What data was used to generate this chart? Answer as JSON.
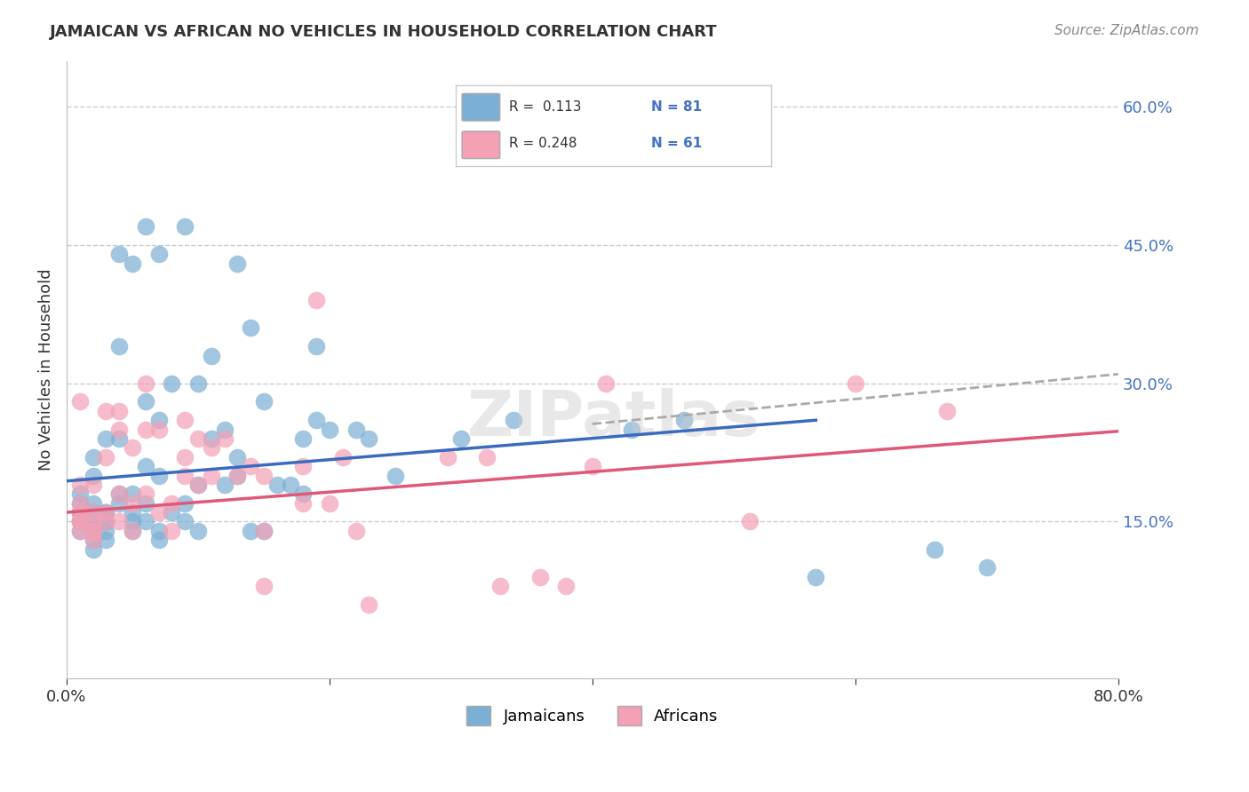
{
  "title": "JAMAICAN VS AFRICAN NO VEHICLES IN HOUSEHOLD CORRELATION CHART",
  "source": "Source: ZipAtlas.com",
  "ylabel": "No Vehicles in Household",
  "xlim": [
    0.0,
    0.8
  ],
  "ylim": [
    -0.02,
    0.65
  ],
  "y_ticks_right": [
    0.6,
    0.45,
    0.3,
    0.15
  ],
  "background_color": "#ffffff",
  "jamaicans_color": "#7bafd4",
  "africans_color": "#f4a0b5",
  "line_jamaicans_color": "#3a6bbf",
  "line_africans_color": "#e05878",
  "dashed_line_color": "#aaaaaa",
  "grid_color": "#cccccc",
  "legend_r1": "R =  0.113",
  "legend_n1": "N = 81",
  "legend_r2": "R = 0.248",
  "legend_n2": "N = 61",
  "jamaicans_x": [
    0.01,
    0.01,
    0.01,
    0.01,
    0.01,
    0.01,
    0.01,
    0.02,
    0.02,
    0.02,
    0.02,
    0.02,
    0.02,
    0.02,
    0.02,
    0.02,
    0.02,
    0.02,
    0.03,
    0.03,
    0.03,
    0.03,
    0.03,
    0.03,
    0.03,
    0.04,
    0.04,
    0.04,
    0.04,
    0.04,
    0.05,
    0.05,
    0.05,
    0.05,
    0.05,
    0.06,
    0.06,
    0.06,
    0.06,
    0.06,
    0.07,
    0.07,
    0.07,
    0.07,
    0.07,
    0.08,
    0.08,
    0.09,
    0.09,
    0.09,
    0.1,
    0.1,
    0.1,
    0.11,
    0.11,
    0.12,
    0.12,
    0.13,
    0.13,
    0.13,
    0.14,
    0.14,
    0.15,
    0.15,
    0.16,
    0.17,
    0.18,
    0.18,
    0.19,
    0.19,
    0.2,
    0.22,
    0.23,
    0.25,
    0.3,
    0.34,
    0.43,
    0.47,
    0.57,
    0.66,
    0.7
  ],
  "jamaicans_y": [
    0.14,
    0.15,
    0.15,
    0.16,
    0.16,
    0.17,
    0.18,
    0.12,
    0.13,
    0.14,
    0.14,
    0.15,
    0.15,
    0.15,
    0.16,
    0.17,
    0.2,
    0.22,
    0.13,
    0.14,
    0.15,
    0.15,
    0.16,
    0.16,
    0.24,
    0.17,
    0.18,
    0.24,
    0.34,
    0.44,
    0.14,
    0.15,
    0.16,
    0.18,
    0.43,
    0.15,
    0.17,
    0.21,
    0.28,
    0.47,
    0.13,
    0.14,
    0.2,
    0.26,
    0.44,
    0.16,
    0.3,
    0.15,
    0.17,
    0.47,
    0.14,
    0.19,
    0.3,
    0.24,
    0.33,
    0.19,
    0.25,
    0.2,
    0.22,
    0.43,
    0.14,
    0.36,
    0.14,
    0.28,
    0.19,
    0.19,
    0.18,
    0.24,
    0.26,
    0.34,
    0.25,
    0.25,
    0.24,
    0.2,
    0.24,
    0.26,
    0.25,
    0.26,
    0.09,
    0.12,
    0.1
  ],
  "africans_x": [
    0.01,
    0.01,
    0.01,
    0.01,
    0.01,
    0.01,
    0.01,
    0.02,
    0.02,
    0.02,
    0.02,
    0.02,
    0.02,
    0.03,
    0.03,
    0.03,
    0.03,
    0.04,
    0.04,
    0.04,
    0.04,
    0.05,
    0.05,
    0.05,
    0.06,
    0.06,
    0.06,
    0.07,
    0.07,
    0.08,
    0.08,
    0.09,
    0.09,
    0.09,
    0.1,
    0.1,
    0.11,
    0.11,
    0.12,
    0.13,
    0.14,
    0.15,
    0.15,
    0.15,
    0.18,
    0.18,
    0.19,
    0.2,
    0.21,
    0.22,
    0.23,
    0.29,
    0.32,
    0.33,
    0.36,
    0.38,
    0.4,
    0.41,
    0.52,
    0.6,
    0.67
  ],
  "africans_y": [
    0.14,
    0.15,
    0.15,
    0.16,
    0.17,
    0.19,
    0.28,
    0.13,
    0.14,
    0.14,
    0.15,
    0.16,
    0.19,
    0.15,
    0.16,
    0.22,
    0.27,
    0.15,
    0.18,
    0.25,
    0.27,
    0.14,
    0.17,
    0.23,
    0.18,
    0.25,
    0.3,
    0.16,
    0.25,
    0.14,
    0.17,
    0.2,
    0.22,
    0.26,
    0.19,
    0.24,
    0.2,
    0.23,
    0.24,
    0.2,
    0.21,
    0.08,
    0.14,
    0.2,
    0.17,
    0.21,
    0.39,
    0.17,
    0.22,
    0.14,
    0.06,
    0.22,
    0.22,
    0.08,
    0.09,
    0.08,
    0.21,
    0.3,
    0.15,
    0.3,
    0.27
  ],
  "jamaicans_trend_x": [
    0.0,
    0.57
  ],
  "jamaicans_trend_y": [
    0.194,
    0.26
  ],
  "africans_trend_x": [
    0.0,
    0.8
  ],
  "africans_trend_y": [
    0.16,
    0.248
  ],
  "dashed_trend_x": [
    0.4,
    0.8
  ],
  "dashed_trend_y": [
    0.256,
    0.31
  ]
}
